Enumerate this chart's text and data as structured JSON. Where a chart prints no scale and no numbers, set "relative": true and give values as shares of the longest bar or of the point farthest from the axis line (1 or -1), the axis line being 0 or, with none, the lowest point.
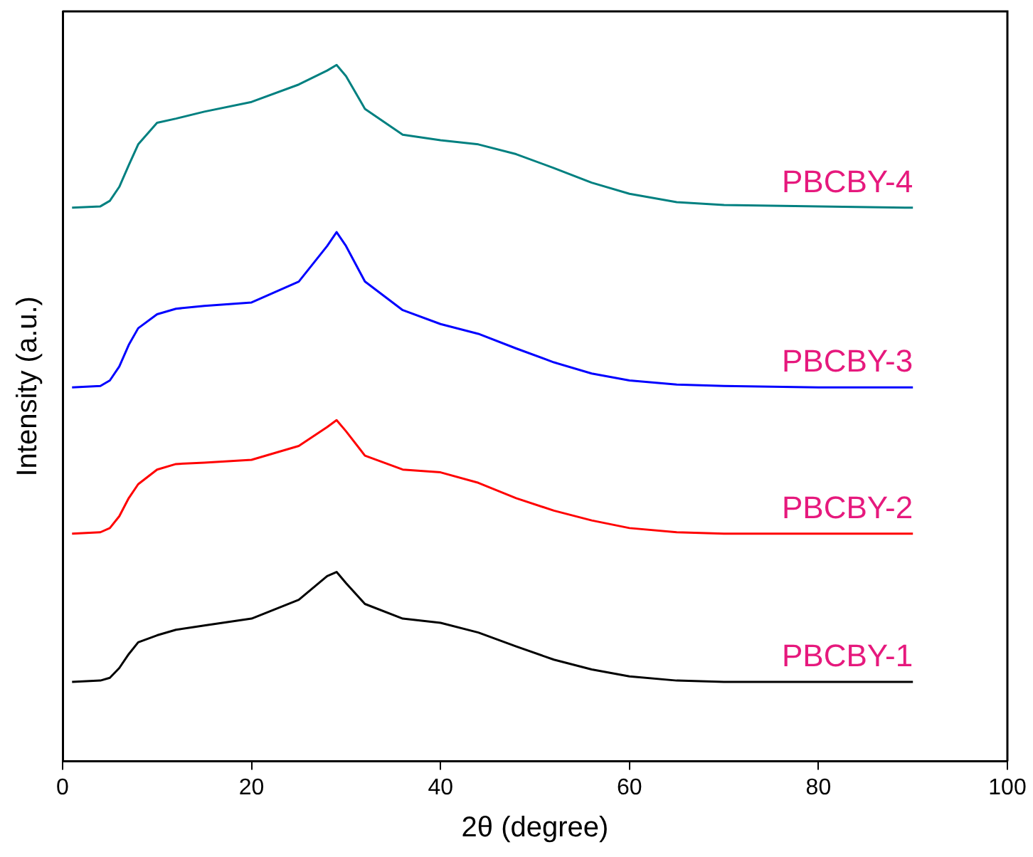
{
  "chart_data": {
    "type": "line",
    "relative": true,
    "xlabel": "2θ (degree)",
    "ylabel": "Intensity (a.u.)",
    "xlim": [
      0,
      100
    ],
    "xticks": [
      0,
      20,
      40,
      60,
      80,
      100
    ],
    "tick_labels": "x",
    "grid": false,
    "legend": false,
    "marker": "none",
    "line_style": "solid",
    "x": [
      1,
      4,
      5,
      6,
      7,
      8,
      10,
      12,
      15,
      20,
      25,
      28,
      29,
      30,
      32,
      36,
      40,
      44,
      48,
      52,
      56,
      60,
      65,
      70,
      80,
      90
    ],
    "series": [
      {
        "name": "PBCBY-1",
        "color": "#000000",
        "values": [
          0.114,
          0.116,
          0.12,
          0.134,
          0.154,
          0.171,
          0.181,
          0.189,
          0.195,
          0.205,
          0.232,
          0.266,
          0.272,
          0.256,
          0.226,
          0.205,
          0.199,
          0.185,
          0.165,
          0.146,
          0.132,
          0.122,
          0.116,
          0.114,
          0.114,
          0.114
        ]
      },
      {
        "name": "PBCBY-2",
        "color": "#ff0000",
        "values": [
          0.327,
          0.329,
          0.335,
          0.352,
          0.378,
          0.398,
          0.419,
          0.427,
          0.429,
          0.433,
          0.453,
          0.48,
          0.49,
          0.474,
          0.439,
          0.419,
          0.415,
          0.4,
          0.378,
          0.36,
          0.346,
          0.335,
          0.329,
          0.327,
          0.327,
          0.327
        ]
      },
      {
        "name": "PBCBY-3",
        "color": "#0000ff",
        "values": [
          0.537,
          0.539,
          0.547,
          0.567,
          0.598,
          0.622,
          0.642,
          0.65,
          0.654,
          0.659,
          0.689,
          0.74,
          0.76,
          0.74,
          0.689,
          0.648,
          0.628,
          0.614,
          0.593,
          0.573,
          0.557,
          0.547,
          0.541,
          0.539,
          0.537,
          0.537
        ]
      },
      {
        "name": "PBCBY-4",
        "color": "#008080",
        "values": [
          0.795,
          0.797,
          0.805,
          0.825,
          0.856,
          0.886,
          0.917,
          0.923,
          0.933,
          0.947,
          0.972,
          0.992,
          1,
          0.984,
          0.937,
          0.9,
          0.892,
          0.886,
          0.872,
          0.852,
          0.831,
          0.815,
          0.803,
          0.799,
          0.797,
          0.795
        ]
      }
    ]
  }
}
